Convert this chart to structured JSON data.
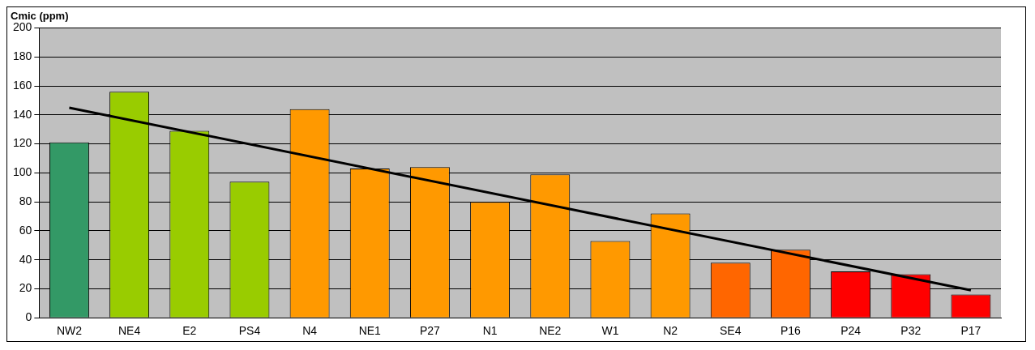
{
  "chart_data": {
    "type": "bar",
    "ylabel": "Cmic (ppm)",
    "categories": [
      "NW2",
      "NE4",
      "E2",
      "PS4",
      "N4",
      "NE1",
      "P27",
      "N1",
      "NE2",
      "W1",
      "N2",
      "SE4",
      "P16",
      "P24",
      "P32",
      "P17"
    ],
    "series": [
      {
        "values": [
          121,
          156,
          129,
          94,
          144,
          103,
          104,
          80,
          99,
          53,
          72,
          38,
          47,
          32,
          30,
          16
        ],
        "colors": [
          "#339966",
          "#99cc00",
          "#99cc00",
          "#99cc00",
          "#ff9900",
          "#ff9900",
          "#ff9900",
          "#ff9900",
          "#ff9900",
          "#ff9900",
          "#ff9900",
          "#ff6600",
          "#ff6600",
          "#ff0000",
          "#ff0000",
          "#ff0000"
        ]
      },
      {
        "type": "line",
        "x": [
          "NW2",
          "P17"
        ],
        "values": [
          145,
          19
        ],
        "color": "#000000"
      }
    ],
    "ylim": [
      0,
      200
    ],
    "yticks": [
      0,
      20,
      40,
      60,
      80,
      100,
      120,
      140,
      160,
      180,
      200
    ],
    "grid": "y",
    "legend": false
  }
}
